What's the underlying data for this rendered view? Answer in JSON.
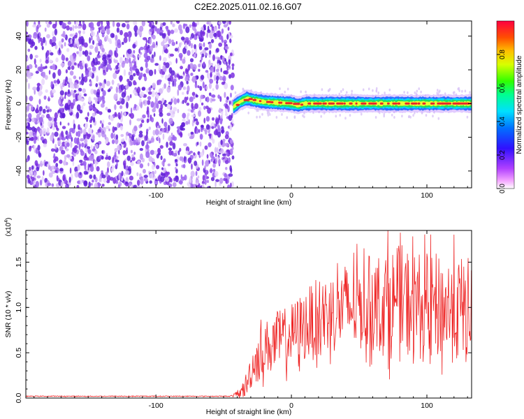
{
  "title": "C2E2.2025.011.02.16.G07",
  "colors": {
    "snr_line": "#ee2222",
    "scatter": "#7a2fe0",
    "band_core": "#e8262a",
    "band_mid": "#22dd55",
    "band_edge": "#1e64ff"
  },
  "chart_data": [
    {
      "type": "heatmap",
      "title": "C2E2.2025.011.02.16.G07",
      "xlabel": "Height of straight line (km)",
      "ylabel": "Frequency (Hz)",
      "xlim": [
        -196,
        133
      ],
      "ylim": [
        -50,
        49
      ],
      "x_ticks": [
        -100,
        0,
        100
      ],
      "x_tick_labels": [
        "-100",
        "0",
        "100"
      ],
      "y_ticks": [
        -40,
        -20,
        0,
        20,
        40
      ],
      "y_tick_labels": [
        "-40",
        "-20",
        "0",
        "20",
        "40"
      ],
      "colorbar": {
        "label": "Normalized spectral amplitude",
        "range": [
          0,
          1
        ],
        "ticks": [
          0.0,
          0.2,
          0.4,
          0.6,
          0.8
        ],
        "tick_labels": [
          "0.0",
          "0.2",
          "0.4",
          "0.6",
          "0.8"
        ],
        "colormap": "rainbow (magenta-blue-cyan-green-yellow-red)"
      },
      "regions": [
        {
          "x_range": [
            -196,
            -43
          ],
          "description": "low-amplitude noise spread across all frequencies",
          "amplitude": [
            0.0,
            0.15
          ]
        },
        {
          "x_range": [
            -43,
            133
          ],
          "description": "narrow signal band near 0 Hz",
          "center_freq": 0,
          "halfwidth_hz": 3,
          "peak_amplitude": 1.0
        }
      ],
      "band_center_freq_samples": [
        {
          "x": -43,
          "y": -2
        },
        {
          "x": -38,
          "y": 1
        },
        {
          "x": -33,
          "y": 3
        },
        {
          "x": -28,
          "y": 2
        },
        {
          "x": -20,
          "y": 1
        },
        {
          "x": -10,
          "y": 0.5
        },
        {
          "x": 0,
          "y": 0
        },
        {
          "x": 5,
          "y": -1
        },
        {
          "x": 10,
          "y": 0
        },
        {
          "x": 30,
          "y": 0
        },
        {
          "x": 60,
          "y": 0
        },
        {
          "x": 100,
          "y": 0
        },
        {
          "x": 133,
          "y": 0
        }
      ]
    },
    {
      "type": "line",
      "xlabel": "Height of straight line (km)",
      "ylabel": "SNR (10 * v/v)",
      "y_multiplier": "(x10^4)",
      "xlim": [
        -196,
        133
      ],
      "ylim": [
        0,
        1.85
      ],
      "x_ticks": [
        -100,
        0,
        100
      ],
      "x_tick_labels": [
        "-100",
        "0",
        "100"
      ],
      "y_ticks": [
        0.0,
        0.5,
        1.0,
        1.5
      ],
      "y_tick_labels": [
        "0.0",
        "0.5",
        "1.0",
        "1.5"
      ],
      "series": [
        {
          "x": [
            -196,
            -100,
            -45,
            -38,
            -33,
            -30,
            -27,
            -23,
            -20,
            -15,
            -10,
            -5,
            0,
            10,
            20,
            30,
            40,
            50,
            60,
            70,
            80,
            90,
            100,
            110,
            120,
            133
          ],
          "y": [
            0.02,
            0.02,
            0.02,
            0.05,
            0.15,
            0.3,
            0.4,
            0.48,
            0.55,
            0.6,
            0.62,
            0.65,
            0.7,
            0.8,
            0.88,
            0.95,
            1.0,
            1.02,
            1.05,
            1.05,
            1.05,
            1.05,
            1.0,
            1.0,
            0.98,
            0.95
          ],
          "y_fluctuation": [
            0.005,
            0.005,
            0.005,
            0.05,
            0.15,
            0.2,
            0.25,
            0.3,
            0.3,
            0.3,
            0.35,
            0.35,
            0.35,
            0.4,
            0.45,
            0.45,
            0.5,
            0.5,
            0.55,
            0.6,
            0.65,
            0.6,
            0.6,
            0.6,
            0.6,
            0.6
          ],
          "y_max": 1.85
        }
      ]
    }
  ]
}
